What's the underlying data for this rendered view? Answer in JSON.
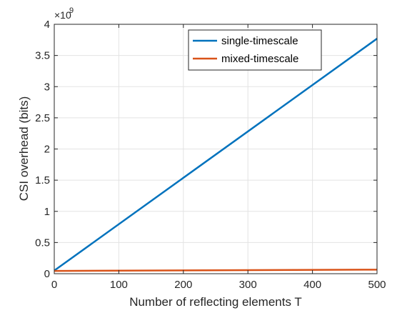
{
  "chart_data": {
    "type": "line",
    "xlabel": "Number of reflecting elements T",
    "ylabel": "CSI overhead (bits)",
    "y_multiplier_base": "×10",
    "y_multiplier_exponent": "9",
    "xlim": [
      0,
      500
    ],
    "ylim": [
      0,
      4
    ],
    "x_ticks": [
      "0",
      "100",
      "200",
      "300",
      "400",
      "500"
    ],
    "y_ticks": [
      "0",
      "0.5",
      "1",
      "1.5",
      "2",
      "2.5",
      "3",
      "3.5",
      "4"
    ],
    "grid": true,
    "legend_position": "top-right",
    "series": [
      {
        "name": "single-timescale",
        "color": "#0072BD",
        "x": [
          0,
          500
        ],
        "y": [
          0.05,
          3.77
        ]
      },
      {
        "name": "mixed-timescale",
        "color": "#D95319",
        "x": [
          0,
          500
        ],
        "y": [
          0.045,
          0.065
        ]
      }
    ]
  }
}
